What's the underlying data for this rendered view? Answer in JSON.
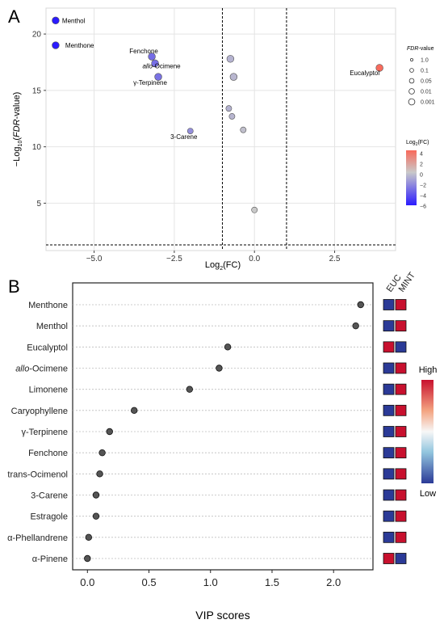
{
  "panels": {
    "a": "A",
    "b": "B"
  },
  "chart_data": [
    {
      "type": "scatter",
      "subtype": "volcano",
      "title": "",
      "xlabel_main": "Log",
      "xlabel_sub": "2",
      "xlabel_tail": "(FC)",
      "ylabel_prefix": "−Log",
      "ylabel_sub": "10",
      "ylabel_mid": "(",
      "ylabel_italic": "FDR",
      "ylabel_tail": "-value)",
      "xlim": [
        -6.5,
        4.4
      ],
      "ylim": [
        0.8,
        22.3
      ],
      "xticks": [
        -5.0,
        -2.5,
        0.0,
        2.5
      ],
      "xtick_labels": [
        "−5.0",
        "−2.5",
        "0.0",
        "2.5"
      ],
      "yticks": [
        5,
        10,
        15,
        20
      ],
      "ytick_labels": [
        "5",
        "10",
        "15",
        "20"
      ],
      "thresholds": {
        "x": [
          -1,
          1
        ],
        "y": 1.3
      },
      "grid": true,
      "points": [
        {
          "x": -6.2,
          "y": 21.2,
          "fc": -6.2,
          "label": "Menthol",
          "label_italic": ""
        },
        {
          "x": -6.2,
          "y": 19.0,
          "fc": -6.2,
          "label": "Menthone",
          "label_italic": ""
        },
        {
          "x": -3.2,
          "y": 18.0,
          "fc": -3.2,
          "label": "Fenchone",
          "label_italic": ""
        },
        {
          "x": -3.1,
          "y": 17.4,
          "fc": -3.1,
          "label": "-Ocimene",
          "label_italic": "allo"
        },
        {
          "x": -3.0,
          "y": 16.2,
          "fc": -3.0,
          "label": "γ-Terpinene",
          "label_italic": ""
        },
        {
          "x": -2.0,
          "y": 11.4,
          "fc": -2.0,
          "label": "3-Carene",
          "label_italic": ""
        },
        {
          "x": -0.75,
          "y": 17.8,
          "fc": -0.75,
          "label": "",
          "label_italic": ""
        },
        {
          "x": -0.65,
          "y": 16.2,
          "fc": -0.65,
          "label": "",
          "label_italic": ""
        },
        {
          "x": -0.8,
          "y": 13.4,
          "fc": -0.8,
          "label": "",
          "label_italic": ""
        },
        {
          "x": -0.7,
          "y": 12.7,
          "fc": -0.7,
          "label": "",
          "label_italic": ""
        },
        {
          "x": -0.35,
          "y": 11.5,
          "fc": -0.35,
          "label": "",
          "label_italic": ""
        },
        {
          "x": 0.0,
          "y": 4.4,
          "fc": 0.0,
          "label": "",
          "label_italic": ""
        },
        {
          "x": 3.9,
          "y": 17.0,
          "fc": 3.9,
          "label": "Eucalyptol",
          "label_italic": ""
        }
      ],
      "legend_size": {
        "title_italic": "FDR",
        "title_tail": "-value",
        "entries": [
          "1.0",
          "0.1",
          "0.05",
          "0.01",
          "0.001"
        ]
      },
      "legend_color": {
        "title_main": "Log",
        "title_sub": "2",
        "title_tail": "(FC)",
        "ticks": [
          4,
          2,
          0,
          -2,
          -4,
          -6
        ],
        "tick_labels": [
          "4",
          "2",
          "0",
          "−2",
          "−4",
          "−6"
        ],
        "colors": {
          "high": "#f8695a",
          "mid": "#c9c9c9",
          "low": "#2b1bff"
        }
      }
    },
    {
      "type": "dot",
      "title": "",
      "xlabel": "VIP scores",
      "xlim": [
        -0.12,
        2.32
      ],
      "xticks": [
        0.0,
        0.5,
        1.0,
        1.5,
        2.0
      ],
      "xtick_labels": [
        "0.0",
        "0.5",
        "1.0",
        "1.5",
        "2.0"
      ],
      "compounds": [
        {
          "name": "Menthone",
          "italic": "",
          "vip": 2.22,
          "euc": "low",
          "mint": "high"
        },
        {
          "name": "Menthol",
          "italic": "",
          "vip": 2.18,
          "euc": "low",
          "mint": "high"
        },
        {
          "name": "Eucalyptol",
          "italic": "",
          "vip": 1.14,
          "euc": "high",
          "mint": "low"
        },
        {
          "name": "-Ocimene",
          "italic": "allo",
          "vip": 1.07,
          "euc": "low",
          "mint": "high"
        },
        {
          "name": "Limonene",
          "italic": "",
          "vip": 0.83,
          "euc": "low",
          "mint": "high"
        },
        {
          "name": "Caryophyllene",
          "italic": "",
          "vip": 0.38,
          "euc": "low",
          "mint": "high"
        },
        {
          "name": "γ-Terpinene",
          "italic": "",
          "vip": 0.18,
          "euc": "low",
          "mint": "high"
        },
        {
          "name": "Fenchone",
          "italic": "",
          "vip": 0.12,
          "euc": "low",
          "mint": "high"
        },
        {
          "name": "trans-Ocimenol",
          "italic": "",
          "vip": 0.1,
          "euc": "low",
          "mint": "high"
        },
        {
          "name": "3-Carene",
          "italic": "",
          "vip": 0.07,
          "euc": "low",
          "mint": "high"
        },
        {
          "name": "Estragole",
          "italic": "",
          "vip": 0.07,
          "euc": "low",
          "mint": "high"
        },
        {
          "name": "α-Phellandrene",
          "italic": "",
          "vip": 0.01,
          "euc": "low",
          "mint": "high"
        },
        {
          "name": "α-Pinene",
          "italic": "",
          "vip": 0.0,
          "euc": "high",
          "mint": "low"
        }
      ],
      "heatmap_columns": [
        "EUC",
        "MINT"
      ],
      "heat_colors": {
        "high": "#c8102e",
        "low": "#2b3a97"
      },
      "scale_labels": {
        "high": "High",
        "low": "Low"
      }
    }
  ]
}
